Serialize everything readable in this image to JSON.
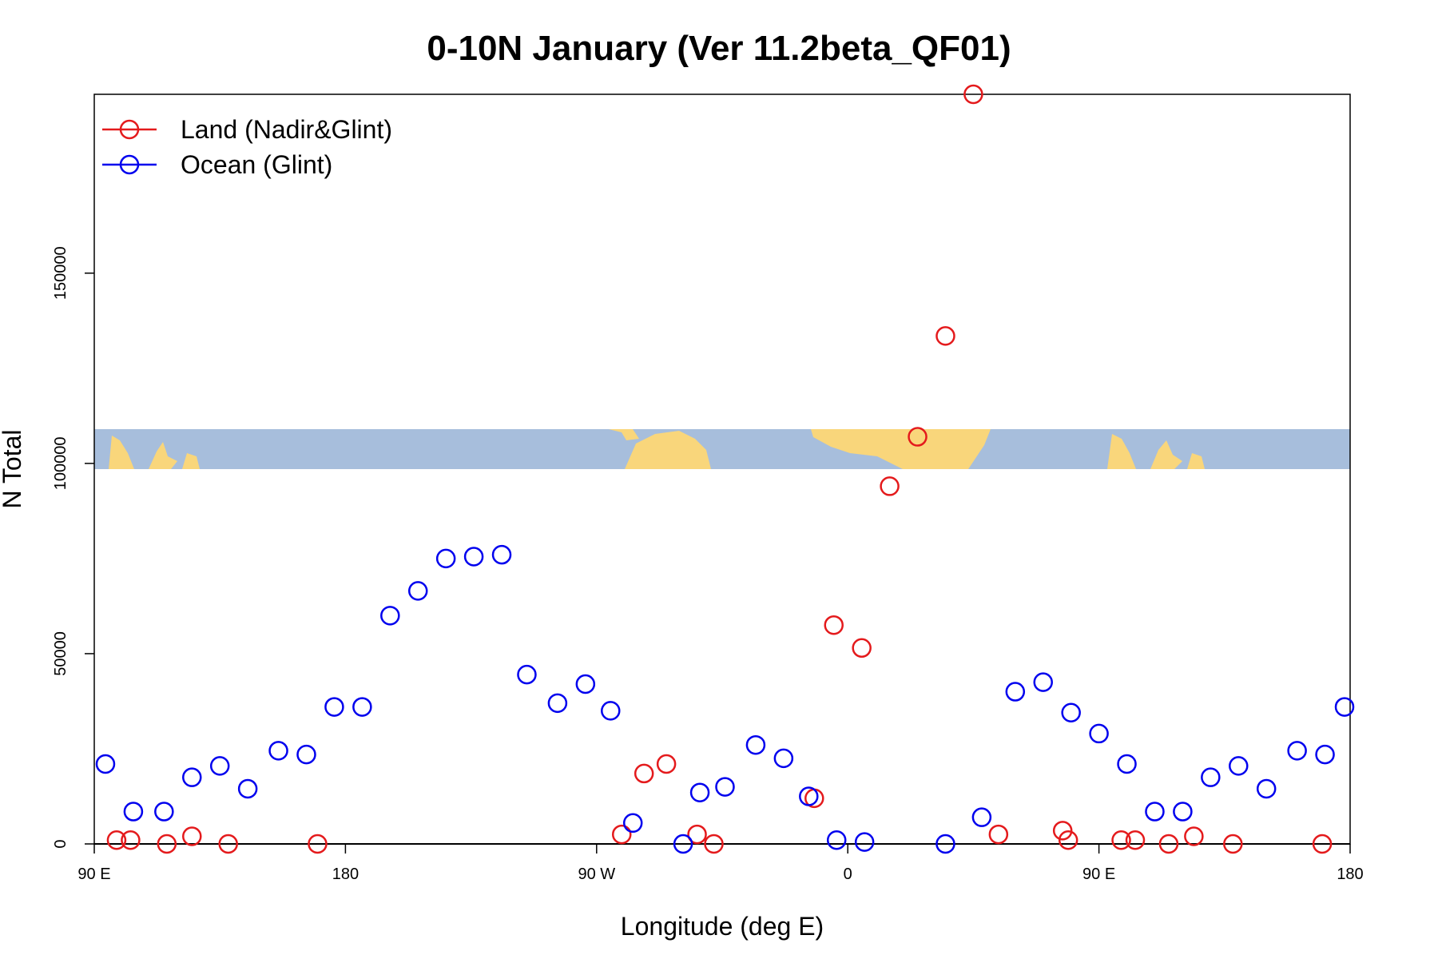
{
  "chart_data": {
    "type": "scatter",
    "title": "0-10N January (Ver 11.2beta_QF01)",
    "xlabel": "Longitude (deg E)",
    "ylabel": "N Total",
    "xlim": [
      90,
      540
    ],
    "ylim": [
      0,
      197000
    ],
    "x_ticks": [
      {
        "value": 90,
        "label": "90 E"
      },
      {
        "value": 180,
        "label": "180"
      },
      {
        "value": 270,
        "label": "90 W"
      },
      {
        "value": 360,
        "label": "0"
      },
      {
        "value": 450,
        "label": "90 E"
      },
      {
        "value": 540,
        "label": "180"
      }
    ],
    "y_ticks": [
      {
        "value": 0,
        "label": "0"
      },
      {
        "value": 50000,
        "label": "50000"
      },
      {
        "value": 100000,
        "label": "100000"
      },
      {
        "value": 150000,
        "label": "150000"
      }
    ],
    "map_strip": {
      "y_range": [
        98500,
        109000
      ],
      "ocean_color": "#a7bedc",
      "land_color": "#f9d67b"
    },
    "legend": {
      "position": "top-left"
    },
    "series": [
      {
        "name": "Land (Nadir&Glint)",
        "color": "#e41a1c",
        "points": [
          [
            98,
            1000
          ],
          [
            103,
            1000
          ],
          [
            116,
            0
          ],
          [
            125,
            2000
          ],
          [
            138,
            0
          ],
          [
            170,
            0
          ],
          [
            279,
            2500
          ],
          [
            287,
            18500
          ],
          [
            295,
            21000
          ],
          [
            306,
            2500
          ],
          [
            312,
            0
          ],
          [
            348,
            12000
          ],
          [
            355,
            57500
          ],
          [
            365,
            51500
          ],
          [
            375,
            94000
          ],
          [
            385,
            107000
          ],
          [
            395,
            133500
          ],
          [
            405,
            197000
          ],
          [
            414,
            2500
          ],
          [
            437,
            3500
          ],
          [
            439,
            1000
          ],
          [
            458,
            1000
          ],
          [
            463,
            1000
          ],
          [
            475,
            0
          ],
          [
            484,
            2000
          ],
          [
            498,
            0
          ],
          [
            530,
            0
          ]
        ]
      },
      {
        "name": "Ocean (Glint)",
        "color": "#0000ee",
        "points": [
          [
            94,
            21000
          ],
          [
            104,
            8500
          ],
          [
            115,
            8500
          ],
          [
            125,
            17500
          ],
          [
            135,
            20500
          ],
          [
            145,
            14500
          ],
          [
            156,
            24500
          ],
          [
            166,
            23500
          ],
          [
            176,
            36000
          ],
          [
            186,
            36000
          ],
          [
            196,
            60000
          ],
          [
            206,
            66500
          ],
          [
            216,
            75000
          ],
          [
            226,
            75500
          ],
          [
            236,
            76000
          ],
          [
            245,
            44500
          ],
          [
            256,
            37000
          ],
          [
            266,
            42000
          ],
          [
            275,
            35000
          ],
          [
            283,
            5500
          ],
          [
            301,
            0
          ],
          [
            307,
            13500
          ],
          [
            316,
            15000
          ],
          [
            327,
            26000
          ],
          [
            337,
            22500
          ],
          [
            346,
            12500
          ],
          [
            356,
            1000
          ],
          [
            366,
            500
          ],
          [
            395,
            0
          ],
          [
            408,
            7000
          ],
          [
            420,
            40000
          ],
          [
            430,
            42500
          ],
          [
            440,
            34500
          ],
          [
            450,
            29000
          ],
          [
            460,
            21000
          ],
          [
            470,
            8500
          ],
          [
            480,
            8500
          ],
          [
            490,
            17500
          ],
          [
            500,
            20500
          ],
          [
            510,
            14500
          ],
          [
            521,
            24500
          ],
          [
            531,
            23500
          ],
          [
            538,
            36000
          ]
        ]
      }
    ]
  }
}
